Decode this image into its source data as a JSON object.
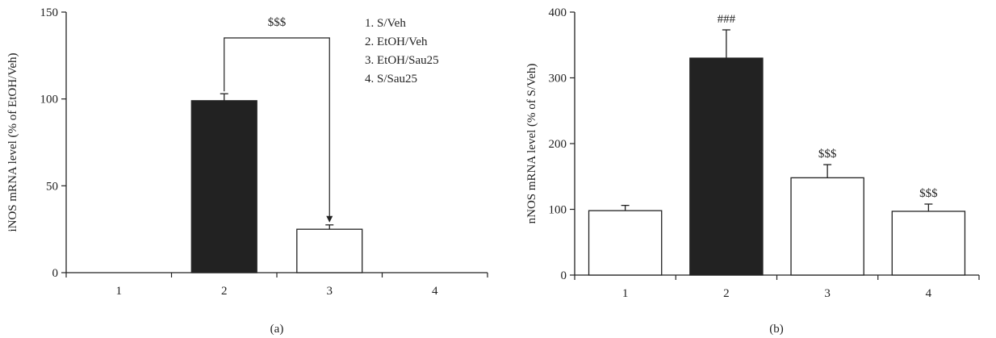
{
  "chart_data": [
    {
      "type": "bar",
      "panel_label": "(a)",
      "categories": [
        "1",
        "2",
        "3",
        "4"
      ],
      "values": [
        null,
        99,
        25,
        null
      ],
      "errors": [
        null,
        4,
        2.5,
        null
      ],
      "bar_colors": [
        "#ffffff",
        "#222222",
        "#ffffff",
        "#ffffff"
      ],
      "ylabel": "iNOS mRNA level (% of EtOH/Veh)",
      "xlabel": "",
      "ylim": [
        0,
        150
      ],
      "yticks": [
        "0",
        "50",
        "100",
        "150"
      ],
      "bracket": {
        "from": "2",
        "to": "3",
        "label": "$$$"
      },
      "legend": [
        "1. S/Veh",
        "2. EtOH/Veh",
        "3. EtOH/Sau25",
        "4. S/Sau25"
      ],
      "legend_placement": "top-right",
      "grid": false
    },
    {
      "type": "bar",
      "panel_label": "(b)",
      "categories": [
        "1",
        "2",
        "3",
        "4"
      ],
      "values": [
        98,
        330,
        148,
        97
      ],
      "errors": [
        8,
        43,
        20,
        11
      ],
      "bar_colors": [
        "#ffffff",
        "#222222",
        "#ffffff",
        "#ffffff"
      ],
      "annotations": [
        "",
        "###",
        "$$$",
        "$$$"
      ],
      "ylabel": "nNOS mRNA level (% of S/Veh)",
      "xlabel": "",
      "ylim": [
        0,
        400
      ],
      "yticks": [
        "0",
        "100",
        "200",
        "300",
        "400"
      ],
      "grid": false
    }
  ]
}
